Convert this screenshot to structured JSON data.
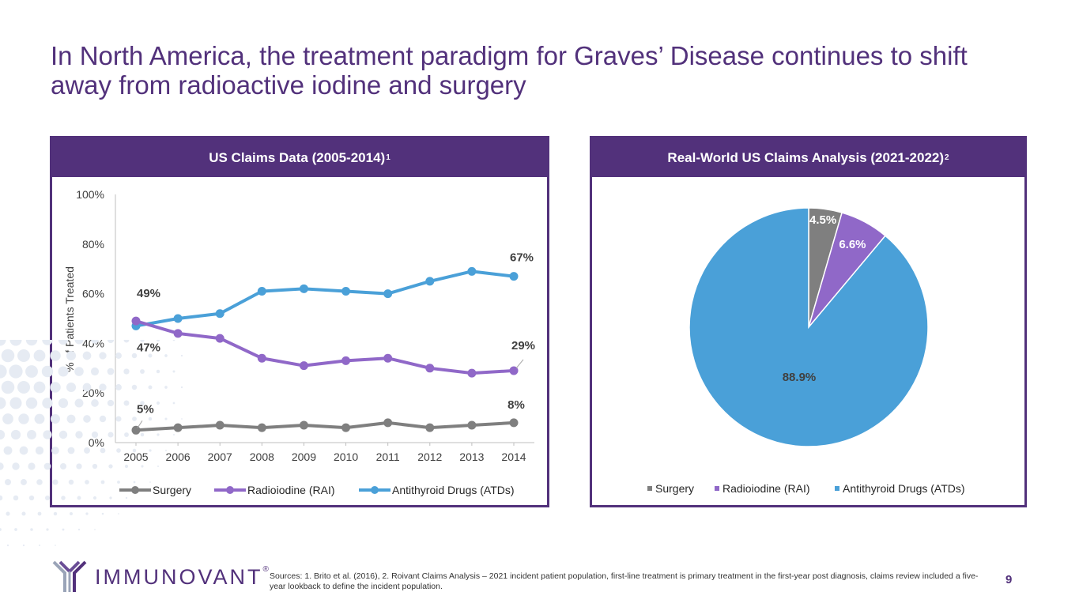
{
  "slide": {
    "title": "In North America, the treatment paradigm for Graves’ Disease continues to shift away from radioactive iodine and surgery",
    "page_number": "9"
  },
  "left_panel": {
    "header": "US Claims Data (2005-2014)",
    "header_sup": "1"
  },
  "right_panel": {
    "header": "Real-World US Claims Analysis (2021-2022)",
    "header_sup": "2"
  },
  "footer": {
    "logo_text": "IMMUNOVANT",
    "logo_mark": "®",
    "sources": "Sources: 1. Brito et al. (2016), 2. Roivant Claims Analysis – 2021 incident patient population, first-line treatment is primary treatment in the first-year post diagnosis, claims review included a five-year lookback to define the incident population."
  },
  "colors": {
    "brand": "#52317b",
    "surgery": "#7f7f7f",
    "rai": "#9068c8",
    "atd": "#4aa0d8"
  },
  "chart_data": [
    {
      "type": "line",
      "title": "",
      "xlabel": "",
      "ylabel": "% of Patients Treated",
      "ylim": [
        0,
        100
      ],
      "yticks": [
        "0%",
        "20%",
        "40%",
        "60%",
        "80%",
        "100%"
      ],
      "x": [
        "2005",
        "2006",
        "2007",
        "2008",
        "2009",
        "2010",
        "2011",
        "2012",
        "2013",
        "2014"
      ],
      "series": [
        {
          "name": "Surgery",
          "color": "#7f7f7f",
          "values": [
            5,
            6,
            7,
            6,
            7,
            6,
            8,
            6,
            7,
            8
          ]
        },
        {
          "name": "Radioiodine (RAI)",
          "color": "#9068c8",
          "values": [
            49,
            44,
            42,
            34,
            31,
            33,
            34,
            30,
            28,
            29
          ]
        },
        {
          "name": "Antithyroid Drugs (ATDs)",
          "color": "#4aa0d8",
          "values": [
            47,
            50,
            52,
            61,
            62,
            61,
            60,
            65,
            69,
            67
          ]
        }
      ],
      "data_labels": [
        {
          "series": 0,
          "index": 0,
          "text": "5%"
        },
        {
          "series": 0,
          "index": 9,
          "text": "8%"
        },
        {
          "series": 1,
          "index": 0,
          "text": "49%"
        },
        {
          "series": 1,
          "index": 9,
          "text": "29%"
        },
        {
          "series": 2,
          "index": 0,
          "text": "47%"
        },
        {
          "series": 2,
          "index": 9,
          "text": "67%"
        }
      ],
      "legend_position": "bottom",
      "grid": false
    },
    {
      "type": "pie",
      "title": "",
      "slices": [
        {
          "name": "Surgery",
          "value": 4.5,
          "label": "4.5%",
          "color": "#7f7f7f"
        },
        {
          "name": "Radioiodine (RAI)",
          "value": 6.6,
          "label": "6.6%",
          "color": "#9068c8"
        },
        {
          "name": "Antithyroid Drugs (ATDs)",
          "value": 88.9,
          "label": "88.9%",
          "color": "#4aa0d8"
        }
      ],
      "legend_position": "bottom"
    }
  ]
}
